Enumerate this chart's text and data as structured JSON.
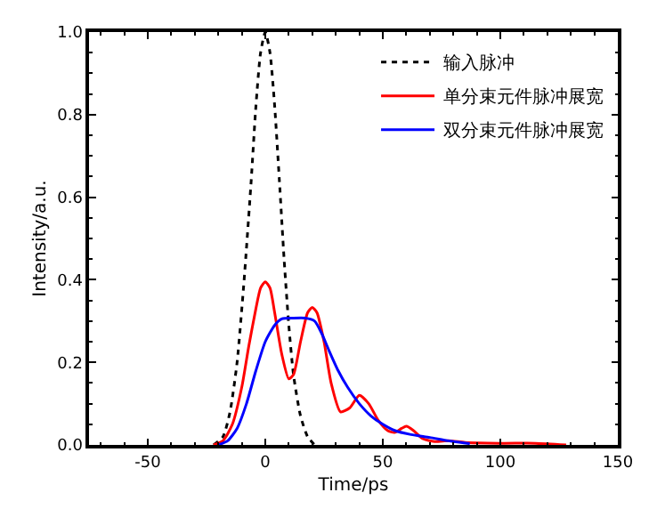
{
  "chart_data": {
    "type": "line",
    "xlabel": "Time/ps",
    "ylabel": "Intensity/a.u.",
    "xlim": [
      -75,
      150
    ],
    "xticks": [
      -50,
      0,
      50,
      100,
      150
    ],
    "ylim": [
      0,
      1
    ],
    "yticks": [
      {
        "value": 0,
        "label": "0.0"
      },
      0.2,
      0.4,
      0.6,
      0.8,
      {
        "value": 1,
        "label": "1.0"
      }
    ],
    "legend": "top right",
    "series": [
      {
        "name": "输入脉冲",
        "color": "#000000",
        "line_style": "dotted",
        "x": [
          -22,
          -18,
          -15,
          -12,
          -9,
          -6,
          -4,
          -2,
          0,
          2,
          4,
          6,
          8,
          10,
          12,
          15,
          18,
          21
        ],
        "values": [
          0,
          0.02,
          0.08,
          0.2,
          0.4,
          0.64,
          0.82,
          0.95,
          1.0,
          0.95,
          0.82,
          0.64,
          0.45,
          0.29,
          0.17,
          0.07,
          0.02,
          0
        ]
      },
      {
        "name": "单分束元件脉冲展宽",
        "color": "#ff0000",
        "line_style": "solid",
        "x": [
          -22,
          -18,
          -14,
          -10,
          -7,
          -4,
          -2,
          0,
          2,
          4,
          7,
          10,
          12,
          15,
          18,
          20,
          22,
          25,
          28,
          32,
          36,
          40,
          44,
          48,
          52,
          55,
          58,
          60,
          63,
          67,
          72,
          78,
          85,
          100,
          115,
          128
        ],
        "values": [
          0,
          0.01,
          0.05,
          0.14,
          0.24,
          0.33,
          0.38,
          0.395,
          0.38,
          0.32,
          0.22,
          0.16,
          0.17,
          0.25,
          0.32,
          0.333,
          0.32,
          0.25,
          0.15,
          0.08,
          0.09,
          0.12,
          0.1,
          0.06,
          0.035,
          0.03,
          0.04,
          0.045,
          0.035,
          0.015,
          0.008,
          0.01,
          0.006,
          0.004,
          0.004,
          0
        ]
      },
      {
        "name": "双分束元件脉冲展宽",
        "color": "#0000ff",
        "line_style": "solid",
        "x": [
          -20,
          -16,
          -12,
          -8,
          -4,
          0,
          4,
          7,
          12,
          17,
          21,
          24,
          27,
          31,
          35,
          40,
          45,
          50,
          55,
          62,
          70,
          78,
          87
        ],
        "values": [
          0,
          0.01,
          0.04,
          0.1,
          0.18,
          0.25,
          0.29,
          0.305,
          0.307,
          0.307,
          0.3,
          0.27,
          0.23,
          0.18,
          0.14,
          0.1,
          0.07,
          0.05,
          0.035,
          0.025,
          0.018,
          0.01,
          0.003
        ]
      }
    ]
  }
}
